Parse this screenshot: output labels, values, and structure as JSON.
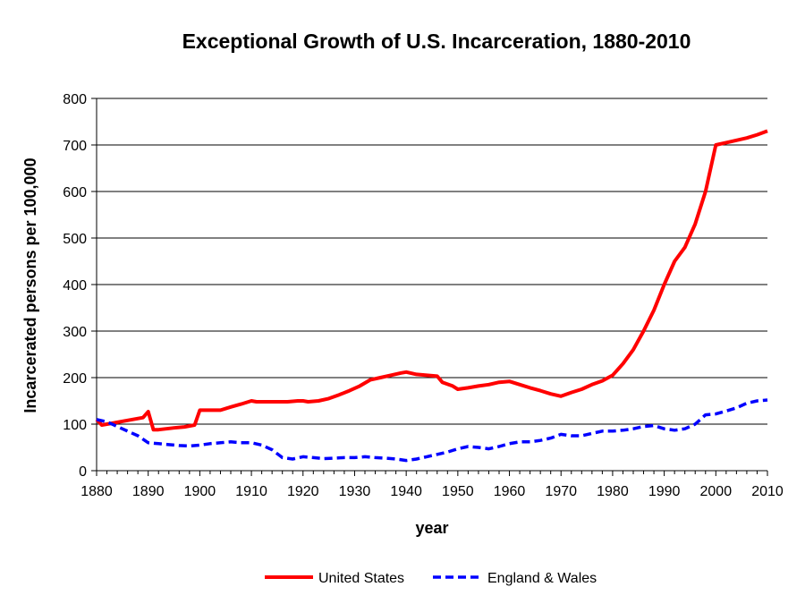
{
  "chart_data": {
    "type": "line",
    "title": "Exceptional Growth of U.S. Incarceration, 1880-2010",
    "xlabel": "year",
    "ylabel": "Incarcerated persons per 100,000",
    "xlim": [
      1880,
      2010
    ],
    "ylim": [
      0,
      800
    ],
    "x_ticks": [
      1880,
      1890,
      1900,
      1910,
      1920,
      1930,
      1940,
      1950,
      1960,
      1970,
      1980,
      1990,
      2000,
      2010
    ],
    "y_ticks": [
      0,
      100,
      200,
      300,
      400,
      500,
      600,
      700,
      800
    ],
    "grid": "horizontal",
    "legend_position": "bottom",
    "series": [
      {
        "name": "United States",
        "color": "#ff0000",
        "style": "solid",
        "x": [
          1880,
          1881,
          1883,
          1886,
          1889,
          1890,
          1891,
          1892,
          1895,
          1897,
          1899,
          1900,
          1902,
          1904,
          1906,
          1908,
          1910,
          1911,
          1913,
          1915,
          1917,
          1919,
          1920,
          1921,
          1923,
          1925,
          1927,
          1929,
          1931,
          1933,
          1935,
          1937,
          1939,
          1940,
          1942,
          1944,
          1946,
          1947,
          1949,
          1950,
          1952,
          1954,
          1956,
          1958,
          1960,
          1962,
          1964,
          1966,
          1968,
          1970,
          1972,
          1974,
          1976,
          1978,
          1980,
          1982,
          1984,
          1986,
          1988,
          1990,
          1992,
          1994,
          1996,
          1998,
          2000,
          2002,
          2004,
          2006,
          2008,
          2010
        ],
        "values": [
          110,
          98,
          102,
          108,
          114,
          127,
          88,
          88,
          92,
          94,
          98,
          130,
          130,
          130,
          137,
          143,
          150,
          148,
          148,
          148,
          148,
          150,
          150,
          148,
          150,
          155,
          163,
          172,
          182,
          195,
          200,
          205,
          210,
          212,
          207,
          205,
          203,
          190,
          182,
          175,
          178,
          182,
          185,
          190,
          192,
          185,
          178,
          172,
          165,
          160,
          168,
          175,
          185,
          193,
          205,
          230,
          260,
          300,
          345,
          400,
          450,
          480,
          530,
          600,
          700,
          705,
          710,
          715,
          722,
          730
        ]
      },
      {
        "name": "England & Wales",
        "color": "#0000ff",
        "style": "dashed",
        "x": [
          1880,
          1882,
          1884,
          1886,
          1888,
          1890,
          1892,
          1894,
          1896,
          1898,
          1900,
          1902,
          1904,
          1906,
          1908,
          1910,
          1912,
          1914,
          1916,
          1918,
          1920,
          1922,
          1924,
          1926,
          1928,
          1930,
          1932,
          1934,
          1936,
          1938,
          1940,
          1942,
          1944,
          1946,
          1948,
          1950,
          1952,
          1954,
          1956,
          1958,
          1960,
          1962,
          1964,
          1966,
          1968,
          1970,
          1972,
          1974,
          1976,
          1978,
          1980,
          1982,
          1984,
          1986,
          1988,
          1990,
          1992,
          1994,
          1996,
          1998,
          2000,
          2002,
          2004,
          2006,
          2008,
          2010
        ],
        "values": [
          110,
          105,
          95,
          85,
          75,
          60,
          58,
          56,
          54,
          53,
          55,
          58,
          60,
          62,
          60,
          60,
          55,
          45,
          28,
          25,
          30,
          28,
          26,
          27,
          28,
          28,
          30,
          28,
          27,
          25,
          22,
          25,
          30,
          35,
          40,
          47,
          52,
          50,
          47,
          52,
          58,
          62,
          62,
          65,
          70,
          78,
          75,
          75,
          80,
          85,
          85,
          87,
          90,
          95,
          97,
          90,
          87,
          90,
          100,
          120,
          122,
          128,
          135,
          145,
          150,
          152
        ]
      }
    ]
  }
}
